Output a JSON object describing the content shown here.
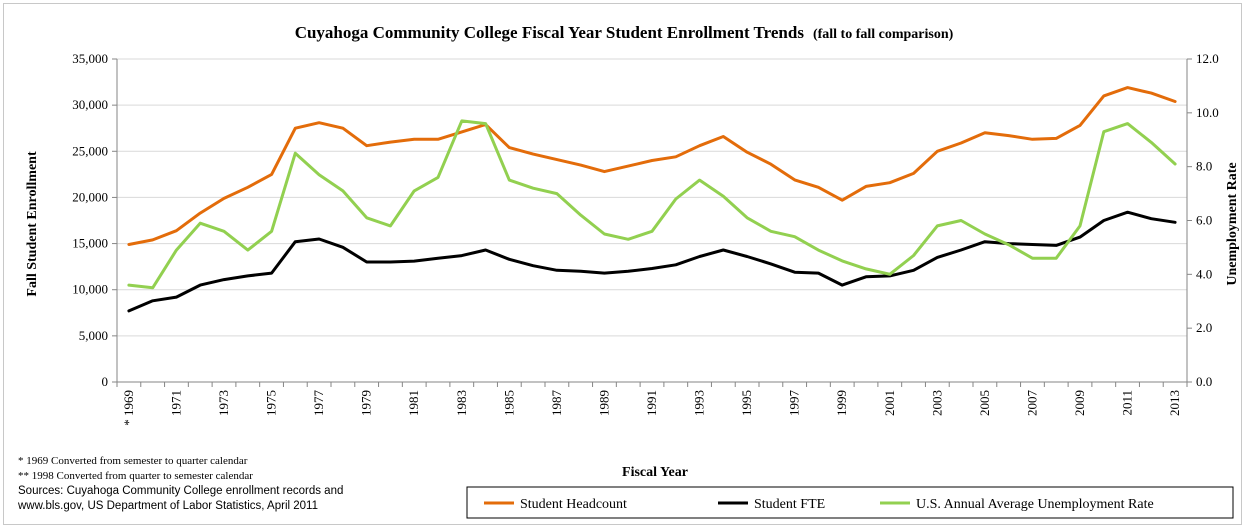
{
  "chart_data": {
    "type": "line",
    "title": "Cuyahoga Community College Fiscal Year Student Enrollment Trends",
    "subtitle": "(fall to fall comparison)",
    "xlabel": "Fiscal Year",
    "ylabel_left": "Fall Student Enrollment",
    "ylabel_right": "Unemployment Rate",
    "ylim_left": [
      0,
      35000
    ],
    "ylim_right": [
      0,
      12
    ],
    "y_ticks_left": [
      "0",
      "5,000",
      "10,000",
      "15,000",
      "20,000",
      "25,000",
      "30,000",
      "35,000"
    ],
    "y_ticks_right": [
      "0.0",
      "2.0",
      "4.0",
      "6.0",
      "8.0",
      "10.0",
      "12.0"
    ],
    "x": [
      1969,
      1970,
      1971,
      1972,
      1973,
      1974,
      1975,
      1976,
      1977,
      1978,
      1979,
      1980,
      1981,
      1982,
      1983,
      1984,
      1985,
      1986,
      1987,
      1988,
      1989,
      1990,
      1991,
      1992,
      1993,
      1994,
      1995,
      1996,
      1997,
      1998,
      1999,
      2000,
      2001,
      2002,
      2003,
      2004,
      2005,
      2006,
      2007,
      2008,
      2009,
      2010,
      2011,
      2012,
      2013
    ],
    "x_tick_labels": [
      "* 1969",
      "1971",
      "1973",
      "1975",
      "1977",
      "1979",
      "1981",
      "1983",
      "1985",
      "1987",
      "1989",
      "1991",
      "1993",
      "1995",
      "1997",
      "1999",
      "2001",
      "2003",
      "2005",
      "2007",
      "2009",
      "2011",
      "2013"
    ],
    "grid": true,
    "legend_position": "bottom",
    "series": [
      {
        "name": "Student Headcount",
        "axis": "left",
        "color": "#e36c0a",
        "values": [
          14900,
          15400,
          16400,
          18300,
          19900,
          21100,
          22500,
          27500,
          28100,
          27500,
          25600,
          26000,
          26300,
          26300,
          27100,
          27900,
          25400,
          24700,
          24100,
          23500,
          22800,
          23400,
          24000,
          24400,
          25600,
          26600,
          24900,
          23600,
          21900,
          21100,
          19700,
          21200,
          21600,
          22600,
          25000,
          25900,
          27000,
          26700,
          26300,
          26400,
          27800,
          31000,
          31900,
          31300,
          30400
        ]
      },
      {
        "name": "Student FTE",
        "axis": "left",
        "color": "#000000",
        "values": [
          7700,
          8800,
          9200,
          10500,
          11100,
          11500,
          11800,
          15200,
          15500,
          14600,
          13000,
          13000,
          13100,
          13400,
          13700,
          14300,
          13300,
          12600,
          12100,
          12000,
          11800,
          12000,
          12300,
          12700,
          13600,
          14300,
          13600,
          12800,
          11900,
          11800,
          10500,
          11400,
          11500,
          12100,
          13500,
          14300,
          15200,
          15000,
          14900,
          14800,
          15700,
          17500,
          18400,
          17700,
          17300
        ]
      },
      {
        "name": "U.S. Annual Average Unemployment Rate",
        "axis": "right",
        "color": "#92d050",
        "values": [
          3.6,
          3.5,
          4.9,
          5.9,
          5.6,
          4.9,
          5.6,
          8.5,
          7.7,
          7.1,
          6.1,
          5.8,
          7.1,
          7.6,
          9.7,
          9.6,
          7.5,
          7.2,
          7.0,
          6.2,
          5.5,
          5.3,
          5.6,
          6.8,
          7.5,
          6.9,
          6.1,
          5.6,
          5.4,
          4.9,
          4.5,
          4.2,
          4.0,
          4.7,
          5.8,
          6.0,
          5.5,
          5.1,
          4.6,
          4.6,
          5.8,
          9.3,
          9.6,
          8.9,
          8.1
        ]
      }
    ]
  },
  "notes": {
    "line1": "* 1969 Converted from semester to quarter calendar",
    "line2": "** 1998 Converted from quarter to semester calendar",
    "line3": "Sources: Cuyahoga Community College enrollment records and",
    "line4": "www.bls.gov, US Department of Labor Statistics, April 2011"
  }
}
